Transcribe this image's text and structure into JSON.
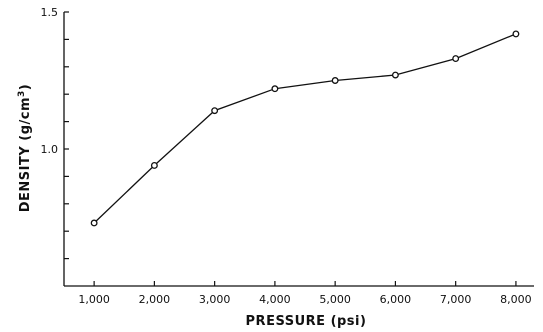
{
  "chart_data": {
    "type": "line",
    "xlabel": "PRESSURE (psi)",
    "ylabel_main": "DENSITY (g/cm",
    "ylabel_sup": "3",
    "ylabel_tail": ")",
    "xlim": [
      500,
      8300
    ],
    "ylim": [
      0.5,
      1.5
    ],
    "x_ticks": [
      1000,
      2000,
      3000,
      4000,
      5000,
      6000,
      7000,
      8000
    ],
    "x_tick_labels": [
      "1,000",
      "2,000",
      "3,000",
      "4,000",
      "5,000",
      "6,000",
      "7,000",
      "8,000"
    ],
    "y_ticks": [
      0.6,
      0.7,
      0.8,
      0.9,
      1.0,
      1.1,
      1.2,
      1.3,
      1.4,
      1.5
    ],
    "y_tick_labels": [
      {
        "value": 1.0,
        "label": "1.0"
      },
      {
        "value": 1.5,
        "label": "1.5"
      }
    ],
    "x": [
      1000,
      2000,
      3000,
      4000,
      5000,
      6000,
      7000,
      8000
    ],
    "y": [
      0.73,
      0.94,
      1.14,
      1.22,
      1.25,
      1.27,
      1.33,
      1.42
    ],
    "grid": false,
    "marker": "open-circle"
  }
}
